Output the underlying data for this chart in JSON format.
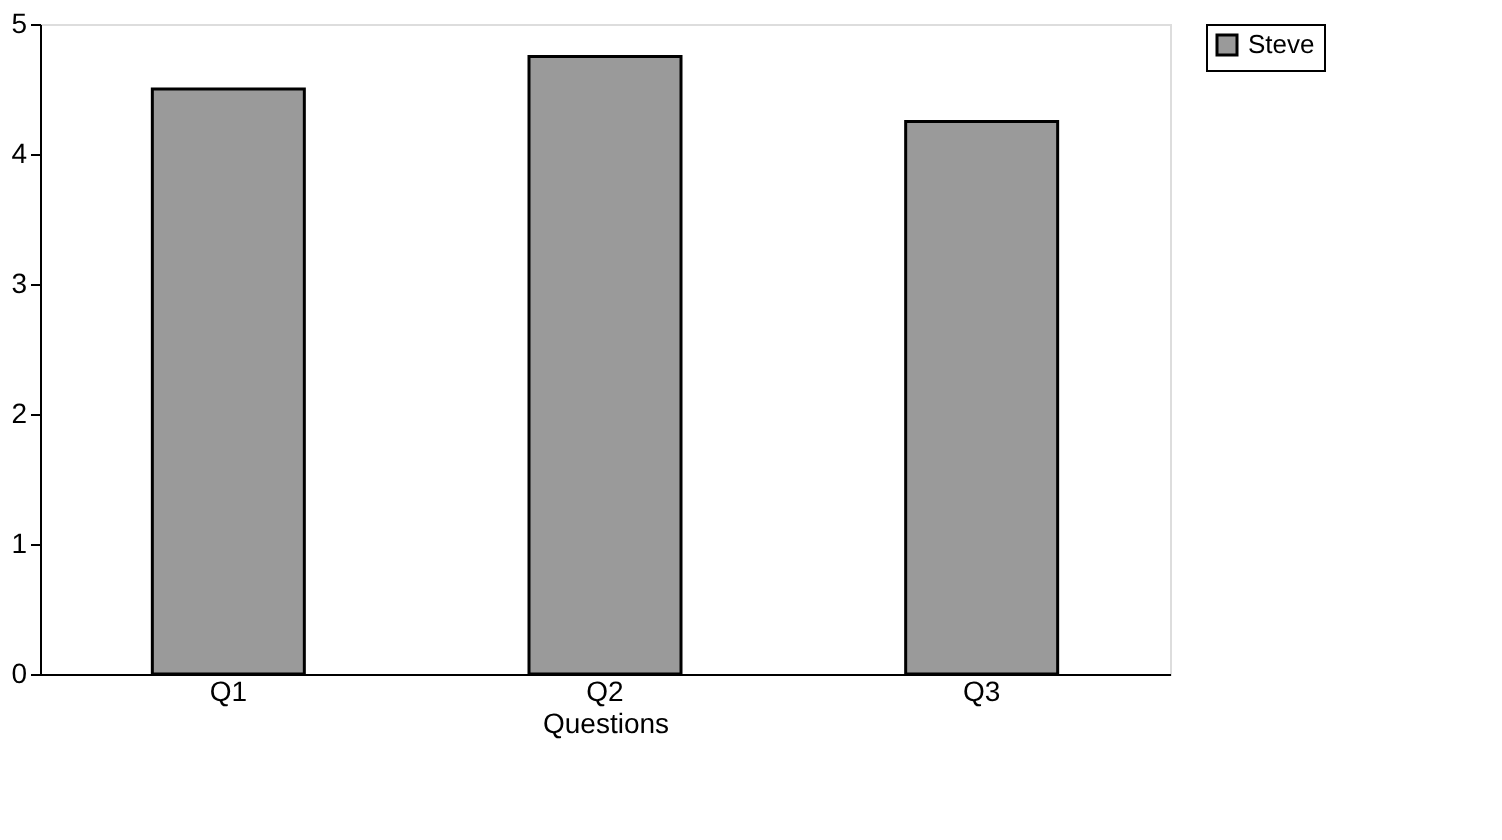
{
  "chart_data": {
    "type": "bar",
    "xlabel": "Questions",
    "categories": [
      "Q1",
      "Q2",
      "Q3"
    ],
    "series": [
      {
        "name": "Steve",
        "color": "#9a9a9a",
        "values": [
          4.5,
          4.75,
          4.25
        ]
      }
    ],
    "ylim": [
      0,
      5
    ],
    "yticks": [
      0,
      1,
      2,
      3,
      4,
      5
    ],
    "grid": false,
    "legend": "right"
  }
}
